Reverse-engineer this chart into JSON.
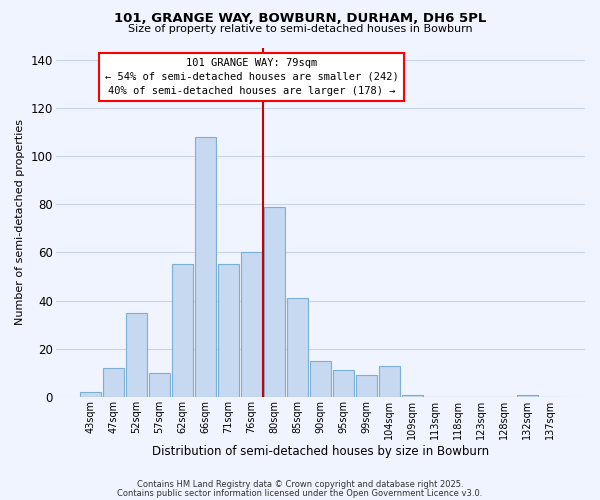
{
  "title1": "101, GRANGE WAY, BOWBURN, DURHAM, DH6 5PL",
  "title2": "Size of property relative to semi-detached houses in Bowburn",
  "xlabel": "Distribution of semi-detached houses by size in Bowburn",
  "ylabel": "Number of semi-detached properties",
  "categories": [
    "43sqm",
    "47sqm",
    "52sqm",
    "57sqm",
    "62sqm",
    "66sqm",
    "71sqm",
    "76sqm",
    "80sqm",
    "85sqm",
    "90sqm",
    "95sqm",
    "99sqm",
    "104sqm",
    "109sqm",
    "113sqm",
    "118sqm",
    "123sqm",
    "128sqm",
    "132sqm",
    "137sqm"
  ],
  "values": [
    2,
    12,
    35,
    10,
    55,
    108,
    55,
    60,
    79,
    41,
    15,
    11,
    9,
    13,
    1,
    0,
    0,
    0,
    0,
    1,
    0
  ],
  "bar_color": "#c6d9f0",
  "bar_edge_color": "#7bafd4",
  "vline_color": "#cc0000",
  "annotation_title": "101 GRANGE WAY: 79sqm",
  "annotation_line1": "← 54% of semi-detached houses are smaller (242)",
  "annotation_line2": "40% of semi-detached houses are larger (178) →",
  "ylim": [
    0,
    145
  ],
  "yticks": [
    0,
    20,
    40,
    60,
    80,
    100,
    120,
    140
  ],
  "background_color": "#f0f4ff",
  "grid_color": "#c8d4e8",
  "footer1": "Contains HM Land Registry data © Crown copyright and database right 2025.",
  "footer2": "Contains public sector information licensed under the Open Government Licence v3.0."
}
